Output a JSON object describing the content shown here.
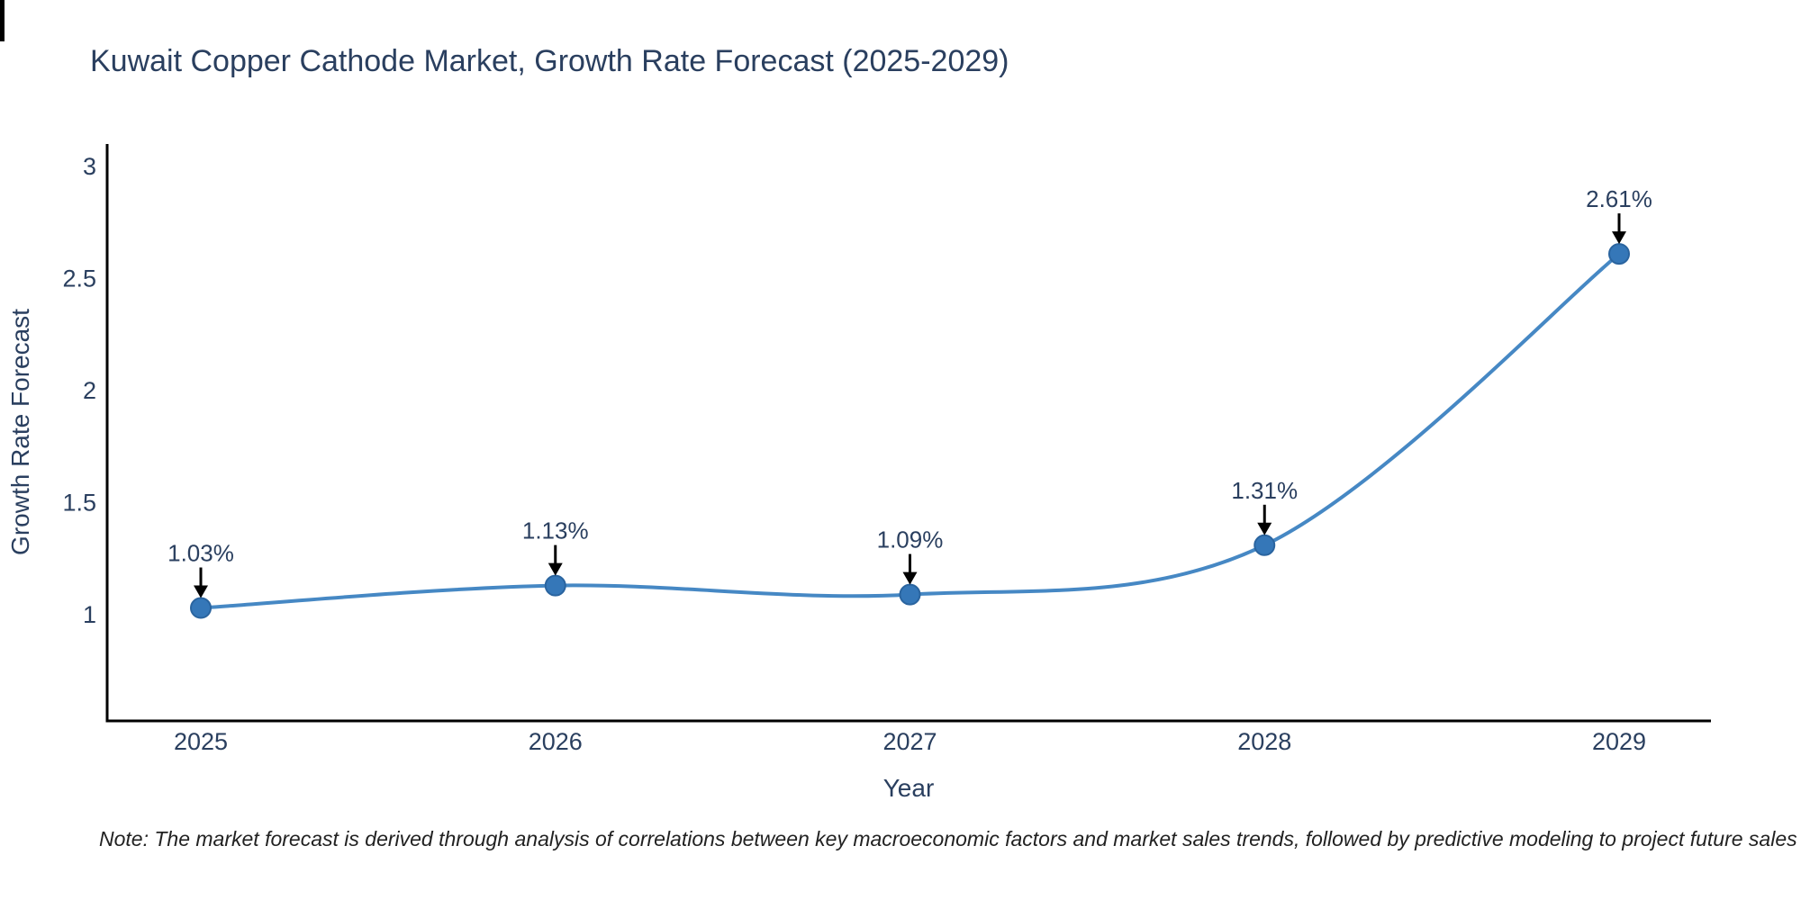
{
  "chart_data": {
    "type": "line",
    "title": "Kuwait Copper Cathode Market, Growth Rate Forecast (2025-2029)",
    "x": [
      "2025",
      "2026",
      "2027",
      "2028",
      "2029"
    ],
    "values": [
      1.03,
      1.13,
      1.09,
      1.31,
      2.61
    ],
    "point_labels": [
      "1.03%",
      "1.13%",
      "1.09%",
      "1.31%",
      "2.61%"
    ],
    "xlabel": "Year",
    "ylabel": "Growth Rate Forecast",
    "yticks": [
      {
        "v": 1,
        "label": "1"
      },
      {
        "v": 1.5,
        "label": "1.5"
      },
      {
        "v": 2,
        "label": "2"
      },
      {
        "v": 2.5,
        "label": "2.5"
      },
      {
        "v": 3,
        "label": "3"
      }
    ],
    "ylim": [
      0.53,
      3.1
    ],
    "grid": false,
    "legend": "none",
    "line_shape": "spline",
    "colors": {
      "line": "#4688c4",
      "marker": "#3577b8",
      "marker_edge": "#2a649f",
      "axis": "#000000",
      "text": "#2a3f5f",
      "annotation_arrow": "#000000"
    }
  },
  "note": "Note: The market forecast is derived through analysis of correlations between key macroeconomic factors and market sales trends, followed by predictive modeling to project future sales"
}
